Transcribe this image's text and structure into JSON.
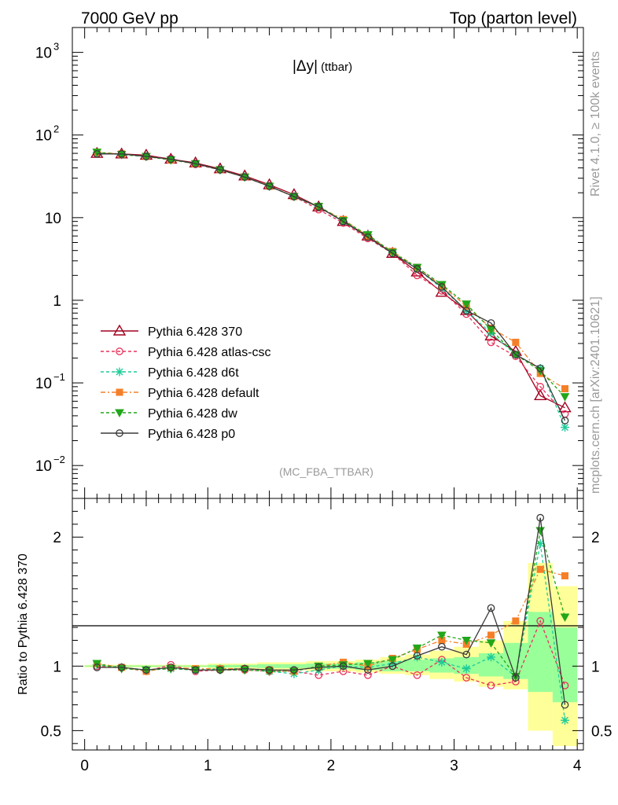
{
  "header": {
    "left": "7000 GeV pp",
    "right": "Top (parton level)"
  },
  "side_labels": {
    "rivet": "Rivet 4.1.0, ≥ 100k events",
    "mcplots": "mcplots.cern.ch [arXiv:2401.10621]"
  },
  "main_title": {
    "main": "|Δy|",
    "sub": "(ttbar)"
  },
  "analysis_tag": "(MC_FBA_TTBAR)",
  "ratio_ylabel": "Ratio to Pythia 6.428 370",
  "colors": {
    "p370": "#a0001e",
    "atlas": "#e8305a",
    "d6t": "#1fcc99",
    "default": "#f57f28",
    "dw": "#22a61a",
    "p0": "#3a3a3a",
    "band_yellow": "#ffff99",
    "band_green": "#99ff99"
  },
  "chart_data": [
    {
      "type": "line",
      "panel": "main",
      "yscale": "log",
      "xlim": [
        -0.1,
        4.05
      ],
      "ylim": [
        0.004,
        2000
      ],
      "x": [
        0.1,
        0.3,
        0.5,
        0.7,
        0.9,
        1.1,
        1.3,
        1.5,
        1.7,
        1.9,
        2.1,
        2.3,
        2.5,
        2.7,
        2.9,
        3.1,
        3.3,
        3.5,
        3.7,
        3.9
      ],
      "x_ticklabels": [
        "0",
        "1",
        "2",
        "3",
        "4"
      ],
      "y_ticklabels": [
        {
          "v": 0.01,
          "base": "10",
          "exp": "−2"
        },
        {
          "v": 0.1,
          "base": "10",
          "exp": "−1"
        },
        {
          "v": 1,
          "base": "1",
          "exp": ""
        },
        {
          "v": 10,
          "base": "10",
          "exp": ""
        },
        {
          "v": 100,
          "base": "10",
          "exp": "2"
        },
        {
          "v": 1000,
          "base": "10",
          "exp": "3"
        }
      ],
      "series": [
        {
          "name": "Pythia 6.428 370",
          "key": "p370",
          "marker": "triangle-open",
          "dash": "",
          "values": [
            60,
            59,
            57,
            51,
            46,
            39,
            32,
            25,
            19,
            13.5,
            9,
            6,
            3.7,
            2.2,
            1.25,
            0.75,
            0.37,
            0.24,
            0.07,
            0.05
          ]
        },
        {
          "name": "Pythia 6.428 atlas-csc",
          "key": "atlas",
          "marker": "circle-open",
          "dash": "4,3",
          "values": [
            60,
            59,
            55,
            52,
            44,
            38,
            31,
            24,
            18,
            12.5,
            8.6,
            5.6,
            3.7,
            2.0,
            1.3,
            0.68,
            0.31,
            0.21,
            0.09,
            0.042
          ]
        },
        {
          "name": "Pythia 6.428 d6t",
          "key": "d6t",
          "marker": "star",
          "dash": "4,3",
          "values": [
            61,
            58,
            55,
            50,
            45,
            38,
            31,
            24,
            18,
            13.5,
            9,
            6.2,
            3.8,
            2.4,
            1.4,
            0.75,
            0.4,
            0.22,
            0.15,
            0.029
          ]
        },
        {
          "name": "Pythia 6.428 default",
          "key": "default",
          "marker": "square",
          "dash": "6,3,2,3",
          "values": [
            62,
            59,
            55,
            50,
            45,
            38,
            31,
            24,
            18,
            13.5,
            9.5,
            6,
            3.9,
            2.5,
            1.5,
            0.85,
            0.46,
            0.31,
            0.13,
            0.085
          ]
        },
        {
          "name": "Pythia 6.428 dw",
          "key": "dw",
          "marker": "triangle-down",
          "dash": "4,3",
          "values": [
            62,
            58,
            55,
            50,
            45,
            38,
            31,
            24,
            18,
            13.7,
            9.2,
            6.2,
            3.8,
            2.5,
            1.55,
            0.9,
            0.44,
            0.22,
            0.14,
            0.068
          ]
        },
        {
          "name": "Pythia 6.428 p0",
          "key": "p0",
          "marker": "circle-open",
          "dash": "",
          "values": [
            59,
            59,
            55,
            51,
            45,
            38,
            31,
            24,
            18,
            13.5,
            9,
            5.8,
            3.7,
            2.4,
            1.45,
            0.75,
            0.53,
            0.22,
            0.15,
            0.035
          ]
        }
      ]
    },
    {
      "type": "line",
      "panel": "ratio",
      "yscale": "linear",
      "ylim": [
        0.35,
        2.3
      ],
      "ylabel": "Ratio to Pythia 6.428 370",
      "x": [
        0.1,
        0.3,
        0.5,
        0.7,
        0.9,
        1.1,
        1.3,
        1.5,
        1.7,
        1.9,
        2.1,
        2.3,
        2.5,
        2.7,
        2.9,
        3.1,
        3.3,
        3.5,
        3.7,
        3.9
      ],
      "y_ticklabels": [
        {
          "v": 0.5,
          "label": "0.5"
        },
        {
          "v": 1,
          "label": "1"
        },
        {
          "v": 2,
          "label": "2"
        }
      ],
      "bands": {
        "edges": [
          0,
          0.2,
          0.4,
          0.6,
          0.8,
          1.0,
          1.2,
          1.4,
          1.6,
          1.8,
          2.0,
          2.2,
          2.4,
          2.6,
          2.8,
          3.0,
          3.2,
          3.4,
          3.6,
          3.8,
          4.0
        ],
        "yellow_lo": [
          0.99,
          0.99,
          0.99,
          0.99,
          0.99,
          0.98,
          0.98,
          0.97,
          0.97,
          0.96,
          0.96,
          0.95,
          0.94,
          0.93,
          0.9,
          0.88,
          0.84,
          0.82,
          0.5,
          0.38
        ],
        "yellow_hi": [
          1.01,
          1.01,
          1.01,
          1.01,
          1.01,
          1.02,
          1.02,
          1.03,
          1.03,
          1.04,
          1.04,
          1.05,
          1.07,
          1.09,
          1.12,
          1.15,
          1.2,
          1.35,
          1.8,
          1.62
        ],
        "green_lo": [
          0.995,
          0.995,
          0.995,
          0.995,
          0.995,
          0.99,
          0.99,
          0.985,
          0.985,
          0.98,
          0.98,
          0.97,
          0.96,
          0.96,
          0.95,
          0.94,
          0.92,
          0.9,
          0.8,
          0.72
        ],
        "green_hi": [
          1.005,
          1.005,
          1.005,
          1.005,
          1.005,
          1.01,
          1.01,
          1.015,
          1.015,
          1.02,
          1.02,
          1.03,
          1.04,
          1.05,
          1.06,
          1.07,
          1.1,
          1.18,
          1.42,
          1.3
        ]
      },
      "series": [
        {
          "name": "Pythia 6.428 atlas-csc",
          "key": "atlas",
          "marker": "circle-open",
          "dash": "4,3",
          "values": [
            1.0,
            0.99,
            0.96,
            1.01,
            0.96,
            0.97,
            0.97,
            0.96,
            0.96,
            0.93,
            0.96,
            0.93,
            1.0,
            0.93,
            1.05,
            0.91,
            0.85,
            0.88,
            1.35,
            0.85
          ]
        },
        {
          "name": "Pythia 6.428 d6t",
          "key": "d6t",
          "marker": "star",
          "dash": "4,3",
          "values": [
            1.01,
            0.99,
            0.97,
            0.98,
            0.97,
            0.98,
            0.98,
            0.96,
            0.94,
            0.97,
            1.0,
            0.99,
            1.02,
            1.07,
            1.03,
            0.98,
            1.07,
            0.92,
            1.95,
            0.58
          ]
        },
        {
          "name": "Pythia 6.428 default",
          "key": "default",
          "marker": "square",
          "dash": "6,3,2,3",
          "values": [
            1.02,
            0.99,
            0.96,
            0.99,
            0.98,
            0.98,
            0.98,
            0.97,
            0.96,
            1.0,
            1.03,
            1.0,
            1.06,
            1.13,
            1.2,
            1.17,
            1.24,
            1.35,
            1.75,
            1.7
          ]
        },
        {
          "name": "Pythia 6.428 dw",
          "key": "dw",
          "marker": "triangle-down",
          "dash": "4,3",
          "values": [
            1.02,
            0.98,
            0.97,
            0.98,
            0.97,
            0.97,
            0.97,
            0.96,
            0.96,
            1.0,
            1.01,
            1.02,
            1.05,
            1.14,
            1.24,
            1.2,
            1.18,
            0.92,
            2.05,
            1.38
          ]
        },
        {
          "name": "Pythia 6.428 p0",
          "key": "p0",
          "marker": "circle-open",
          "dash": "",
          "values": [
            0.99,
            0.99,
            0.97,
            0.99,
            0.97,
            0.97,
            0.98,
            0.97,
            0.97,
            0.99,
            1.0,
            0.97,
            1.0,
            1.08,
            1.15,
            1.09,
            1.45,
            0.91,
            2.15,
            0.7
          ]
        }
      ]
    }
  ]
}
